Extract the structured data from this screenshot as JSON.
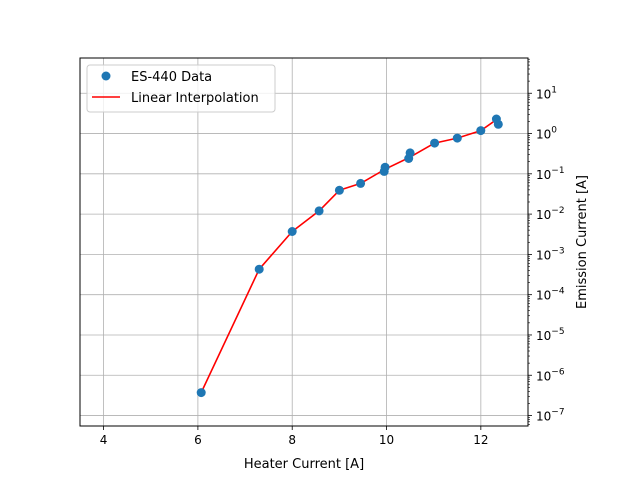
{
  "chart_data": {
    "type": "scatter",
    "xlabel": "Heater Current [A]",
    "ylabel": "Emission Current [A]",
    "xlim": [
      3.5,
      13.0
    ],
    "ylim": [
      5.5e-08,
      75.0
    ],
    "yscale": "log",
    "grid": true,
    "legend_position": "top-left",
    "x_ticks": [
      4,
      6,
      8,
      10,
      12
    ],
    "x_tick_labels": [
      "4",
      "6",
      "8",
      "10",
      "12"
    ],
    "y_ticks": [
      1e-07,
      1e-06,
      1e-05,
      0.0001,
      0.001,
      0.01,
      0.1,
      1.0,
      10.0
    ],
    "y_tick_labels": [
      {
        "base": "10",
        "exp": "−7"
      },
      {
        "base": "10",
        "exp": "−6"
      },
      {
        "base": "10",
        "exp": "−5"
      },
      {
        "base": "10",
        "exp": "−4"
      },
      {
        "base": "10",
        "exp": "−3"
      },
      {
        "base": "10",
        "exp": "−2"
      },
      {
        "base": "10",
        "exp": "−1"
      },
      {
        "base": "10",
        "exp": "0"
      },
      {
        "base": "10",
        "exp": "1"
      }
    ],
    "series": [
      {
        "name": "ES-440 Data",
        "kind": "scatter",
        "color": "#1f77b4",
        "x": [
          6.07,
          7.3,
          8.0,
          8.57,
          9.0,
          9.45,
          9.95,
          9.97,
          10.47,
          10.5,
          11.02,
          11.5,
          12.0,
          12.33,
          12.37
        ],
        "y": [
          3.7e-07,
          0.00043,
          0.0037,
          0.012,
          0.039,
          0.058,
          0.115,
          0.145,
          0.24,
          0.33,
          0.58,
          0.77,
          1.18,
          2.3,
          1.7
        ]
      },
      {
        "name": "Linear Interpolation",
        "kind": "line",
        "color": "#ff0000",
        "x": [
          6.07,
          7.3,
          8.0,
          8.57,
          9.0,
          9.45,
          9.97,
          10.5,
          11.02,
          11.5,
          12.0,
          12.33,
          12.37
        ],
        "y": [
          3.7e-07,
          0.00043,
          0.0037,
          0.012,
          0.039,
          0.058,
          0.13,
          0.26,
          0.58,
          0.77,
          1.18,
          2.2,
          1.7
        ]
      }
    ]
  }
}
